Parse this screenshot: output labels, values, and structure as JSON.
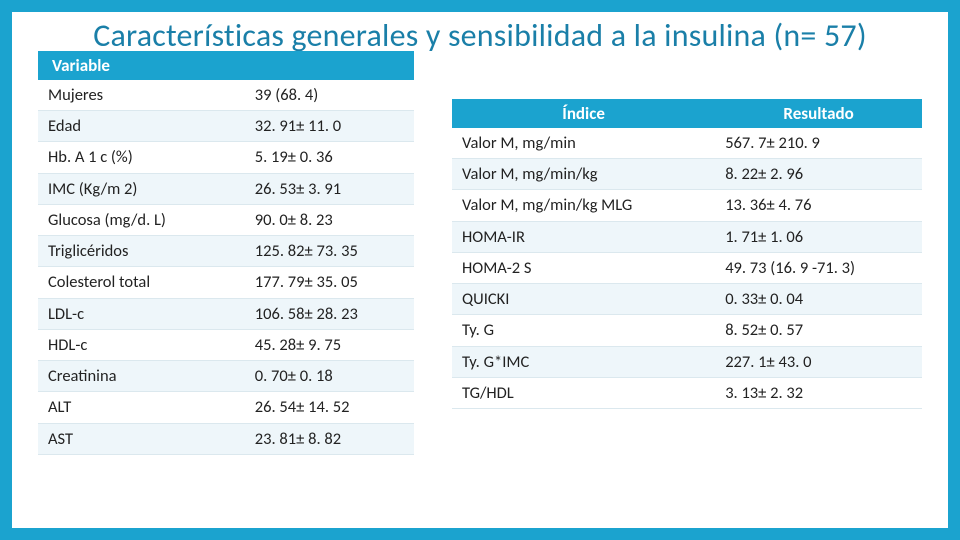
{
  "colors": {
    "accent": "#1ba3cf",
    "title": "#1a7fa8",
    "row_alt": "#eef6fa",
    "row_border": "#dbe8ee",
    "text": "#222222",
    "header_text": "#ffffff",
    "background": "#ffffff"
  },
  "typography": {
    "title_fontsize_pt": 24,
    "title_weight": 300,
    "body_fontsize_pt": 12.5,
    "header_weight": 600,
    "family": "Segoe UI / Calibri"
  },
  "title": "Características generales y sensibilidad a la insulina (n= 57)",
  "left_table": {
    "type": "table",
    "columns": [
      "Variable",
      ""
    ],
    "header_visible_cols": 1,
    "rows": [
      [
        "Mujeres",
        "39 (68. 4)"
      ],
      [
        "Edad",
        "32. 91± 11. 0"
      ],
      [
        "Hb. A 1 c (%)",
        "5. 19± 0. 36"
      ],
      [
        "IMC (Kg/m 2)",
        "26. 53± 3. 91"
      ],
      [
        "Glucosa (mg/d. L)",
        "90. 0± 8. 23"
      ],
      [
        "Triglicéridos",
        "125. 82± 73. 35"
      ],
      [
        "Colesterol total",
        "177. 79± 35. 05"
      ],
      [
        "LDL-c",
        "106. 58± 28. 23"
      ],
      [
        "HDL-c",
        "45. 28± 9. 75"
      ],
      [
        "Creatinina",
        "0. 70± 0. 18"
      ],
      [
        "ALT",
        "26. 54± 14. 52"
      ],
      [
        "AST",
        "23. 81± 8. 82"
      ]
    ]
  },
  "right_table": {
    "type": "table",
    "columns": [
      "Índice",
      "Resultado"
    ],
    "rows": [
      [
        "Valor M, mg/min",
        "567. 7± 210. 9"
      ],
      [
        "Valor M, mg/min/kg",
        "8. 22± 2. 96"
      ],
      [
        "Valor M, mg/min/kg MLG",
        "13. 36± 4. 76"
      ],
      [
        "HOMA-IR",
        "1. 71± 1. 06"
      ],
      [
        "HOMA-2 S",
        "49. 73 (16. 9 -71. 3)"
      ],
      [
        "QUICKI",
        "0. 33± 0. 04"
      ],
      [
        "Ty. G",
        "8. 52± 0. 57"
      ],
      [
        "Ty. G*IMC",
        "227. 1± 43. 0"
      ],
      [
        "TG/HDL",
        "3. 13± 2. 32"
      ]
    ]
  }
}
